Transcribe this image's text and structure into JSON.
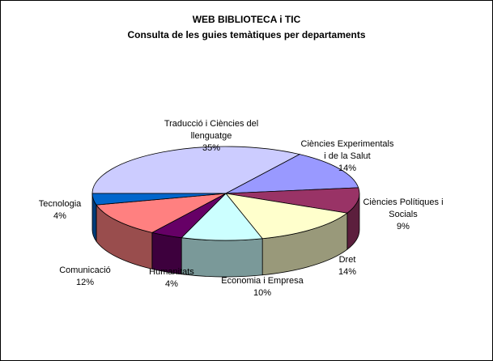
{
  "chart_data": {
    "type": "pie",
    "title": "WEB BIBLIOTECA i TIC",
    "subtitle": "Consulta de les guies temàtiques per departaments",
    "categories": [
      "Traducció i Ciències del llenguatge",
      "Ciències Experimentals i de la Salut",
      "Ciències Polítiques i Socials",
      "Dret",
      "Economia i Empresa",
      "Humanitats",
      "Comunicació",
      "Tecnologia"
    ],
    "values": [
      35,
      14,
      9,
      14,
      10,
      4,
      12,
      4
    ],
    "value_labels": [
      "35%",
      "14%",
      "9%",
      "14%",
      "10%",
      "4%",
      "12%",
      "4%"
    ],
    "colors": [
      "#ccccff",
      "#9999ff",
      "#993366",
      "#ffffcc",
      "#ccffff",
      "#660066",
      "#ff8080",
      "#0066cc"
    ]
  }
}
